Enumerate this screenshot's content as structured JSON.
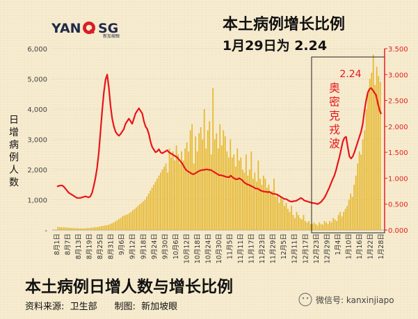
{
  "logo": {
    "part1": "YAN",
    "part2": "SG",
    "sub": "新加坡眼"
  },
  "chart_data": {
    "type": "bar+line",
    "title_line1": "本土病例增长比例",
    "title_line2": "1月29日为 2.24",
    "ylabel_left": "日增病例人数",
    "left_ticks": [
      "6,000",
      "5,000",
      "4,000",
      "3,000",
      "2,000",
      "1,000",
      "-"
    ],
    "left_ylim": [
      0,
      6000
    ],
    "right_ticks": [
      "3.500",
      "3.000",
      "2.500",
      "2.000",
      "1.500",
      "1.000",
      "0.500",
      "0.000"
    ],
    "right_ylim": [
      0,
      3.5
    ],
    "x_tick_labels": [
      "8月1日",
      "8月7日",
      "8月13日",
      "8月19日",
      "8月25日",
      "8月31日",
      "9月6日",
      "9月12日",
      "9月18日",
      "9月24日",
      "9月30日",
      "10月6日",
      "10月12日",
      "10月18日",
      "10月24日",
      "10月30日",
      "11月5日",
      "11月11日",
      "11月17日",
      "11月23日",
      "11月29日",
      "12月5日",
      "12月11日",
      "12月17日",
      "12月23日",
      "12月29日",
      "1月4日",
      "1月10日",
      "1月16日",
      "1月22日",
      "1月28日"
    ],
    "bars_daily_cases": [
      100,
      95,
      90,
      85,
      85,
      80,
      75,
      70,
      70,
      65,
      60,
      60,
      55,
      55,
      50,
      55,
      60,
      65,
      70,
      75,
      80,
      90,
      95,
      100,
      120,
      130,
      140,
      150,
      160,
      170,
      200,
      220,
      250,
      280,
      320,
      360,
      400,
      450,
      480,
      500,
      520,
      560,
      600,
      650,
      700,
      750,
      800,
      850,
      900,
      950,
      1000,
      1100,
      1200,
      1300,
      1400,
      1500,
      1600,
      1700,
      1800,
      1900,
      2000,
      2100,
      2200,
      1900,
      2700,
      2400,
      2600,
      2300,
      2800,
      2500,
      2200,
      2600,
      2300,
      2700,
      2900,
      2600,
      3300,
      3500,
      2200,
      3100,
      2600,
      3200,
      3400,
      3000,
      4000,
      2700,
      3300,
      3600,
      2500,
      4700,
      3000,
      3200,
      2700,
      3500,
      2800,
      3300,
      3100,
      2600,
      2400,
      3000,
      2400,
      2500,
      2100,
      2700,
      2300,
      2400,
      2000,
      1900,
      2500,
      1800,
      2000,
      2600,
      1700,
      1900,
      1600,
      2300,
      1700,
      1500,
      1800,
      1700,
      1400,
      1500,
      1200,
      1300,
      1700,
      1100,
      1200,
      900,
      1100,
      1000,
      800,
      900,
      700,
      600,
      800,
      500,
      400,
      600,
      500,
      400,
      350,
      500,
      300,
      250,
      300,
      200,
      200,
      250,
      200,
      150,
      250,
      200,
      180,
      300,
      250,
      200,
      300,
      250,
      400,
      350,
      300,
      500,
      600,
      450,
      600,
      700,
      800,
      1000,
      1200,
      1100,
      1500,
      1800,
      2200,
      2600,
      2500,
      3000,
      3300,
      4000,
      4600,
      5000,
      5200,
      5800,
      4800,
      5400,
      5100,
      4900
    ],
    "line_growth_ratio": [
      0.84,
      0.85,
      0.86,
      0.86,
      0.84,
      0.8,
      0.76,
      0.72,
      0.7,
      0.68,
      0.66,
      0.64,
      0.62,
      0.62,
      0.62,
      0.63,
      0.64,
      0.65,
      0.64,
      0.63,
      0.65,
      0.72,
      0.85,
      1.0,
      1.2,
      1.5,
      1.9,
      2.3,
      2.65,
      2.9,
      3.0,
      2.75,
      2.4,
      2.15,
      2.0,
      1.9,
      1.85,
      1.82,
      1.85,
      1.9,
      1.95,
      2.05,
      2.1,
      2.15,
      2.1,
      2.05,
      2.15,
      2.25,
      2.3,
      2.35,
      2.3,
      2.25,
      2.1,
      2.0,
      1.95,
      1.85,
      1.7,
      1.6,
      1.55,
      1.5,
      1.52,
      1.56,
      1.5,
      1.48,
      1.5,
      1.52,
      1.54,
      1.5,
      1.48,
      1.46,
      1.44,
      1.42,
      1.4,
      1.36,
      1.32,
      1.28,
      1.22,
      1.17,
      1.14,
      1.12,
      1.1,
      1.08,
      1.08,
      1.1,
      1.12,
      1.14,
      1.15,
      1.16,
      1.16,
      1.17,
      1.17,
      1.16,
      1.16,
      1.14,
      1.12,
      1.1,
      1.08,
      1.06,
      1.06,
      1.05,
      1.04,
      1.03,
      1.02,
      1.02,
      1.05,
      1.02,
      1.0,
      0.98,
      0.98,
      1.0,
      0.98,
      0.96,
      0.92,
      0.9,
      0.88,
      0.87,
      0.85,
      0.84,
      0.82,
      0.8,
      0.8,
      0.78,
      0.76,
      0.75,
      0.74,
      0.74,
      0.73,
      0.74,
      0.72,
      0.7,
      0.7,
      0.69,
      0.68,
      0.66,
      0.64,
      0.62,
      0.6,
      0.6,
      0.58,
      0.56,
      0.55,
      0.55,
      0.56,
      0.56,
      0.58,
      0.6,
      0.62,
      0.6,
      0.57,
      0.56,
      0.55,
      0.54,
      0.53,
      0.52,
      0.52,
      0.51,
      0.5,
      0.52,
      0.54,
      0.58,
      0.62,
      0.68,
      0.75,
      0.82,
      0.9,
      0.98,
      1.05,
      1.15,
      1.28,
      1.4,
      1.55,
      1.7,
      1.78,
      1.8,
      1.6,
      1.42,
      1.38,
      1.42,
      1.5,
      1.6,
      1.7,
      1.8,
      1.9,
      2.05,
      2.3,
      2.5,
      2.65,
      2.72,
      2.74,
      2.7,
      2.65,
      2.6,
      2.45,
      2.32,
      2.24
    ],
    "annotation_value": "2.24",
    "annotation_label": "奥密克戎波",
    "footer_title": "本土病例日增人数与增长比例",
    "footer_source": "资料来源:  卫生部      制图:  新加坡眼"
  },
  "watermark": "微信号: kanxinjiapo",
  "colors": {
    "bar": "#e6b830",
    "line": "#e8141a",
    "right_axis": "#e02020",
    "grid": "#b5b5b5"
  }
}
